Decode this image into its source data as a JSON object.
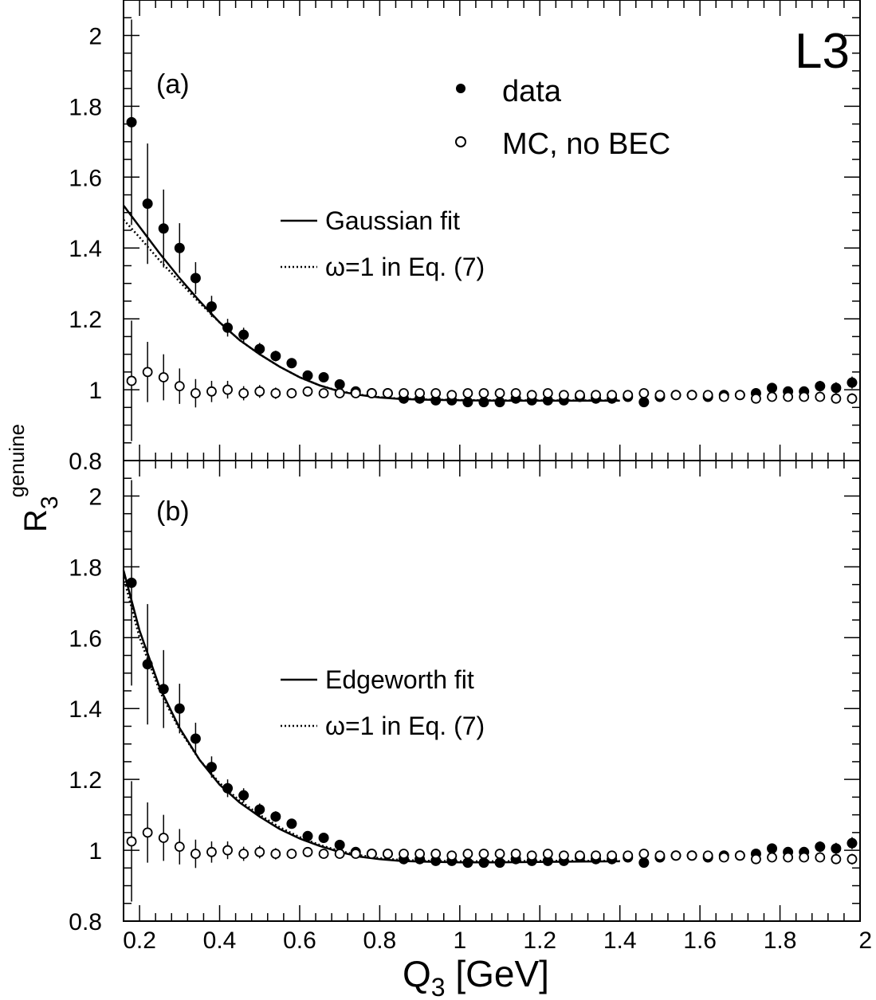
{
  "experiment_label": "L3",
  "ylabel": {
    "main": "R",
    "sub": "3",
    "sup": "genuine"
  },
  "xlabel": {
    "main": "Q",
    "sub": "3",
    "unit": " [GeV]"
  },
  "xticks": [
    "0.2",
    "0.4",
    "0.6",
    "0.8",
    "1",
    "1.2",
    "1.4",
    "1.6",
    "1.8",
    "2"
  ],
  "yticks": [
    "0.8",
    "1",
    "1.2",
    "1.4",
    "1.6",
    "1.8",
    "2"
  ],
  "legend": {
    "data": "data",
    "mc": "MC, no BEC",
    "omega": "ω=1 in Eq. (7)"
  },
  "chart_data": [
    {
      "type": "scatter",
      "panel_label": "(a)",
      "xlim": [
        0.16,
        2.0
      ],
      "ylim": [
        0.8,
        2.1
      ],
      "grid": false,
      "legend_position": "top-right",
      "fit_label": "Gaussian fit",
      "series": [
        {
          "name": "data",
          "x": [
            0.18,
            0.22,
            0.26,
            0.3,
            0.34,
            0.38,
            0.42,
            0.46,
            0.5,
            0.54,
            0.58,
            0.62,
            0.66,
            0.7,
            0.74,
            0.78,
            0.82,
            0.86,
            0.9,
            0.94,
            0.98,
            1.02,
            1.06,
            1.1,
            1.14,
            1.18,
            1.22,
            1.26,
            1.3,
            1.34,
            1.38,
            1.42,
            1.46,
            1.5,
            1.54,
            1.58,
            1.62,
            1.66,
            1.7,
            1.74,
            1.78,
            1.82,
            1.86,
            1.9,
            1.94,
            1.98
          ],
          "y": [
            1.755,
            1.525,
            1.455,
            1.4,
            1.315,
            1.235,
            1.175,
            1.155,
            1.115,
            1.095,
            1.075,
            1.04,
            1.035,
            1.015,
            0.995,
            0.99,
            0.99,
            0.975,
            0.975,
            0.97,
            0.97,
            0.965,
            0.965,
            0.965,
            0.975,
            0.97,
            0.97,
            0.97,
            0.98,
            0.975,
            0.975,
            0.98,
            0.965,
            0.98,
            0.985,
            0.985,
            0.98,
            0.985,
            0.985,
            0.99,
            1.005,
            0.995,
            0.995,
            1.01,
            1.005,
            1.02
          ],
          "yerr": [
            0.29,
            0.17,
            0.11,
            0.07,
            0.045,
            0.03,
            0.025,
            0.02,
            0.017,
            0.015,
            0.013,
            0.012,
            0.011,
            0.01,
            0.01,
            0.009,
            0.009,
            0.008,
            0.008,
            0.008,
            0.008,
            0.008,
            0.008,
            0.008,
            0.008,
            0.008,
            0.008,
            0.008,
            0.008,
            0.008,
            0.008,
            0.009,
            0.009,
            0.009,
            0.009,
            0.01,
            0.01,
            0.01,
            0.011,
            0.012,
            0.013,
            0.013,
            0.014,
            0.015,
            0.016,
            0.017
          ]
        },
        {
          "name": "MC, no BEC",
          "x": [
            0.18,
            0.22,
            0.26,
            0.3,
            0.34,
            0.38,
            0.42,
            0.46,
            0.5,
            0.54,
            0.58,
            0.62,
            0.66,
            0.7,
            0.74,
            0.78,
            0.82,
            0.86,
            0.9,
            0.94,
            0.98,
            1.02,
            1.06,
            1.1,
            1.14,
            1.18,
            1.22,
            1.26,
            1.3,
            1.34,
            1.38,
            1.42,
            1.46,
            1.5,
            1.54,
            1.58,
            1.62,
            1.66,
            1.7,
            1.74,
            1.78,
            1.82,
            1.86,
            1.9,
            1.94,
            1.98
          ],
          "y": [
            1.025,
            1.05,
            1.035,
            1.01,
            0.99,
            0.995,
            1.0,
            0.99,
            0.995,
            0.99,
            0.99,
            0.995,
            0.99,
            0.99,
            0.99,
            0.99,
            0.99,
            0.99,
            0.99,
            0.99,
            0.985,
            0.99,
            0.99,
            0.99,
            0.99,
            0.985,
            0.99,
            0.985,
            0.985,
            0.985,
            0.985,
            0.985,
            0.99,
            0.985,
            0.985,
            0.985,
            0.985,
            0.98,
            0.985,
            0.975,
            0.98,
            0.98,
            0.98,
            0.98,
            0.975,
            0.975
          ],
          "yerr": [
            0.17,
            0.085,
            0.065,
            0.05,
            0.04,
            0.03,
            0.025,
            0.02,
            0.018,
            0.016,
            0.014,
            0.012,
            0.011,
            0.01,
            0.009,
            0.009,
            0.008,
            0.008,
            0.008,
            0.008,
            0.008,
            0.008,
            0.008,
            0.008,
            0.008,
            0.008,
            0.008,
            0.008,
            0.008,
            0.008,
            0.008,
            0.008,
            0.008,
            0.009,
            0.009,
            0.009,
            0.009,
            0.009,
            0.01,
            0.01,
            0.011,
            0.011,
            0.012,
            0.013,
            0.014,
            0.015
          ]
        },
        {
          "name": "Gaussian fit",
          "style": "solid",
          "x": [
            0.16,
            0.2,
            0.25,
            0.3,
            0.35,
            0.4,
            0.45,
            0.5,
            0.55,
            0.6,
            0.65,
            0.7,
            0.75,
            0.8,
            0.85,
            0.9,
            1.0,
            1.1,
            1.2,
            1.3,
            1.4
          ],
          "y": [
            1.52,
            1.46,
            1.385,
            1.315,
            1.25,
            1.19,
            1.14,
            1.1,
            1.065,
            1.035,
            1.012,
            0.995,
            0.985,
            0.978,
            0.974,
            0.972,
            0.97,
            0.969,
            0.969,
            0.969,
            0.969
          ]
        },
        {
          "name": "ω=1 in Eq. (7)",
          "style": "dotted",
          "x": [
            0.16,
            0.2,
            0.25,
            0.3,
            0.35,
            0.4,
            0.45,
            0.5,
            0.55,
            0.6,
            0.65,
            0.7,
            0.75,
            0.8,
            0.85,
            0.9,
            1.0,
            1.1,
            1.2,
            1.3,
            1.4
          ],
          "y": [
            1.48,
            1.43,
            1.365,
            1.305,
            1.245,
            1.19,
            1.14,
            1.1,
            1.065,
            1.035,
            1.012,
            0.996,
            0.986,
            0.979,
            0.975,
            0.973,
            0.971,
            0.97,
            0.97,
            0.97,
            0.97
          ]
        }
      ]
    },
    {
      "type": "scatter",
      "panel_label": "(b)",
      "xlim": [
        0.16,
        2.0
      ],
      "ylim": [
        0.8,
        2.1
      ],
      "grid": false,
      "legend_position": "right",
      "fit_label": "Edgeworth fit",
      "series": [
        {
          "name": "data",
          "x": [
            0.18,
            0.22,
            0.26,
            0.3,
            0.34,
            0.38,
            0.42,
            0.46,
            0.5,
            0.54,
            0.58,
            0.62,
            0.66,
            0.7,
            0.74,
            0.78,
            0.82,
            0.86,
            0.9,
            0.94,
            0.98,
            1.02,
            1.06,
            1.1,
            1.14,
            1.18,
            1.22,
            1.26,
            1.3,
            1.34,
            1.38,
            1.42,
            1.46,
            1.5,
            1.54,
            1.58,
            1.62,
            1.66,
            1.7,
            1.74,
            1.78,
            1.82,
            1.86,
            1.9,
            1.94,
            1.98
          ],
          "y": [
            1.755,
            1.525,
            1.455,
            1.4,
            1.315,
            1.235,
            1.175,
            1.155,
            1.115,
            1.095,
            1.075,
            1.04,
            1.035,
            1.015,
            0.995,
            0.99,
            0.99,
            0.975,
            0.975,
            0.97,
            0.97,
            0.965,
            0.965,
            0.965,
            0.975,
            0.97,
            0.97,
            0.97,
            0.98,
            0.975,
            0.975,
            0.98,
            0.965,
            0.98,
            0.985,
            0.985,
            0.98,
            0.985,
            0.985,
            0.99,
            1.005,
            0.995,
            0.995,
            1.01,
            1.005,
            1.02
          ],
          "yerr": [
            0.29,
            0.17,
            0.11,
            0.07,
            0.045,
            0.03,
            0.025,
            0.02,
            0.017,
            0.015,
            0.013,
            0.012,
            0.011,
            0.01,
            0.01,
            0.009,
            0.009,
            0.008,
            0.008,
            0.008,
            0.008,
            0.008,
            0.008,
            0.008,
            0.008,
            0.008,
            0.008,
            0.008,
            0.008,
            0.008,
            0.008,
            0.009,
            0.009,
            0.009,
            0.009,
            0.01,
            0.01,
            0.01,
            0.011,
            0.012,
            0.013,
            0.013,
            0.014,
            0.015,
            0.016,
            0.017
          ]
        },
        {
          "name": "MC, no BEC",
          "x": [
            0.18,
            0.22,
            0.26,
            0.3,
            0.34,
            0.38,
            0.42,
            0.46,
            0.5,
            0.54,
            0.58,
            0.62,
            0.66,
            0.7,
            0.74,
            0.78,
            0.82,
            0.86,
            0.9,
            0.94,
            0.98,
            1.02,
            1.06,
            1.1,
            1.14,
            1.18,
            1.22,
            1.26,
            1.3,
            1.34,
            1.38,
            1.42,
            1.46,
            1.5,
            1.54,
            1.58,
            1.62,
            1.66,
            1.7,
            1.74,
            1.78,
            1.82,
            1.86,
            1.9,
            1.94,
            1.98
          ],
          "y": [
            1.025,
            1.05,
            1.035,
            1.01,
            0.99,
            0.995,
            1.0,
            0.99,
            0.995,
            0.99,
            0.99,
            0.995,
            0.99,
            0.99,
            0.99,
            0.99,
            0.99,
            0.99,
            0.99,
            0.99,
            0.985,
            0.99,
            0.99,
            0.99,
            0.99,
            0.985,
            0.99,
            0.985,
            0.985,
            0.985,
            0.985,
            0.985,
            0.99,
            0.985,
            0.985,
            0.985,
            0.985,
            0.98,
            0.985,
            0.975,
            0.98,
            0.98,
            0.98,
            0.98,
            0.975,
            0.975
          ],
          "yerr": [
            0.17,
            0.085,
            0.065,
            0.05,
            0.04,
            0.03,
            0.025,
            0.02,
            0.018,
            0.016,
            0.014,
            0.012,
            0.011,
            0.01,
            0.009,
            0.009,
            0.008,
            0.008,
            0.008,
            0.008,
            0.008,
            0.008,
            0.008,
            0.008,
            0.008,
            0.008,
            0.008,
            0.008,
            0.008,
            0.008,
            0.008,
            0.008,
            0.008,
            0.009,
            0.009,
            0.009,
            0.009,
            0.009,
            0.01,
            0.01,
            0.011,
            0.011,
            0.012,
            0.013,
            0.014,
            0.015
          ]
        },
        {
          "name": "Edgeworth fit",
          "style": "solid",
          "x": [
            0.16,
            0.2,
            0.25,
            0.3,
            0.35,
            0.4,
            0.45,
            0.5,
            0.55,
            0.6,
            0.65,
            0.7,
            0.75,
            0.8,
            0.85,
            0.9,
            1.0,
            1.1,
            1.2,
            1.3,
            1.4
          ],
          "y": [
            1.79,
            1.62,
            1.46,
            1.345,
            1.255,
            1.185,
            1.135,
            1.095,
            1.06,
            1.033,
            1.012,
            0.995,
            0.982,
            0.975,
            0.97,
            0.968,
            0.966,
            0.966,
            0.967,
            0.968,
            0.969
          ]
        },
        {
          "name": "ω=1 in Eq. (7)",
          "style": "dotted",
          "x": [
            0.16,
            0.2,
            0.25,
            0.3,
            0.35,
            0.4,
            0.45,
            0.5,
            0.55,
            0.6,
            0.65,
            0.7,
            0.75,
            0.8,
            0.85,
            0.9,
            1.0,
            1.1,
            1.2,
            1.3,
            1.4
          ],
          "y": [
            1.77,
            1.6,
            1.45,
            1.34,
            1.255,
            1.19,
            1.14,
            1.1,
            1.065,
            1.037,
            1.015,
            0.998,
            0.986,
            0.978,
            0.973,
            0.971,
            0.969,
            0.969,
            0.97,
            0.97,
            0.97
          ]
        }
      ]
    }
  ]
}
